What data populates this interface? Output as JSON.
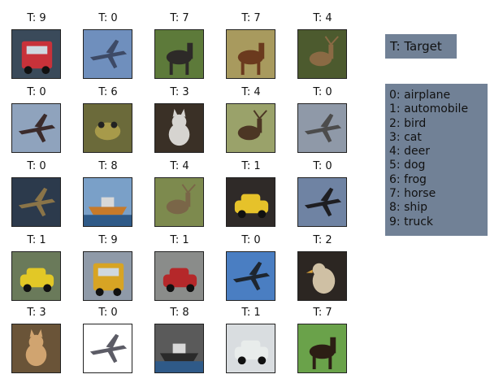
{
  "legend_target": "T: Target",
  "legend_classes": [
    "0: airplane",
    "1: automobile",
    "2: bird",
    "3: cat",
    "4: deer",
    "5: dog",
    "6: frog",
    "7: horse",
    "8: ship",
    "9: truck"
  ],
  "tiles": [
    {
      "label": "T: 9",
      "subject": "truck",
      "bg": "#3a4a5a",
      "fg": "#c8323a"
    },
    {
      "label": "T: 0",
      "subject": "airplane",
      "bg": "#6f8fbd",
      "fg": "#3d4a66"
    },
    {
      "label": "T: 7",
      "subject": "horse",
      "bg": "#5d7a3a",
      "fg": "#2d2a28"
    },
    {
      "label": "T: 7",
      "subject": "horse",
      "bg": "#a89a5e",
      "fg": "#6b3a1e"
    },
    {
      "label": "T: 4",
      "subject": "deer",
      "bg": "#4c5a2e",
      "fg": "#8a6a44"
    },
    {
      "label": "T: 0",
      "subject": "airplane",
      "bg": "#8fa3bd",
      "fg": "#3b2b2b"
    },
    {
      "label": "T: 6",
      "subject": "frog",
      "bg": "#6b6a3a",
      "fg": "#a79a4a"
    },
    {
      "label": "T: 3",
      "subject": "cat",
      "bg": "#3a3026",
      "fg": "#d6d4d0"
    },
    {
      "label": "T: 4",
      "subject": "deer",
      "bg": "#9aa26a",
      "fg": "#4c3624"
    },
    {
      "label": "T: 0",
      "subject": "airplane",
      "bg": "#8f99a8",
      "fg": "#4c4c4c"
    },
    {
      "label": "T: 0",
      "subject": "airplane",
      "bg": "#2c3a4c",
      "fg": "#8a7448"
    },
    {
      "label": "T: 8",
      "subject": "ship",
      "bg": "#7aa0c8",
      "fg": "#c77a2a"
    },
    {
      "label": "T: 4",
      "subject": "deer",
      "bg": "#7d8a4e",
      "fg": "#7a6648"
    },
    {
      "label": "T: 1",
      "subject": "automobile",
      "bg": "#2f2a28",
      "fg": "#e6c22a"
    },
    {
      "label": "T: 0",
      "subject": "airplane",
      "bg": "#6f83a3",
      "fg": "#1e1e22"
    },
    {
      "label": "T: 1",
      "subject": "automobile",
      "bg": "#6a7a5a",
      "fg": "#e2c826"
    },
    {
      "label": "T: 9",
      "subject": "truck",
      "bg": "#8f9aa8",
      "fg": "#d7a424"
    },
    {
      "label": "T: 1",
      "subject": "automobile",
      "bg": "#8a8c8a",
      "fg": "#b5282a"
    },
    {
      "label": "T: 0",
      "subject": "airplane",
      "bg": "#4a7ec2",
      "fg": "#1e2630"
    },
    {
      "label": "T: 2",
      "subject": "bird",
      "bg": "#2c2622",
      "fg": "#cfc0a4"
    },
    {
      "label": "T: 3",
      "subject": "cat",
      "bg": "#6a5438",
      "fg": "#d0a470"
    },
    {
      "label": "T: 0",
      "subject": "airplane",
      "bg": "#ffffff",
      "fg": "#5c5c66"
    },
    {
      "label": "T: 8",
      "subject": "ship",
      "bg": "#5a5a5a",
      "fg": "#2a2a2a"
    },
    {
      "label": "T: 1",
      "subject": "automobile",
      "bg": "#d9dde0",
      "fg": "#e8eceb"
    },
    {
      "label": "T: 7",
      "subject": "horse",
      "bg": "#6aa24a",
      "fg": "#2c1e14"
    }
  ]
}
